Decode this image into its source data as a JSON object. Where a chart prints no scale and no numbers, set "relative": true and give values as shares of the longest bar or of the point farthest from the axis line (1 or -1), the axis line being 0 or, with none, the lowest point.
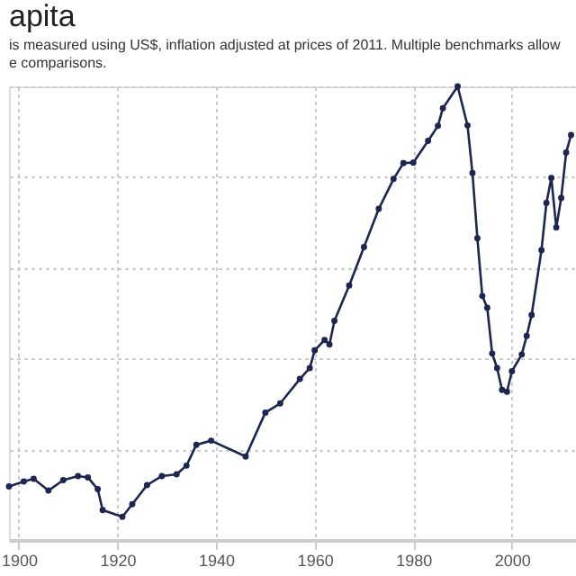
{
  "chart_data": {
    "type": "line",
    "title": "apita",
    "subtitle": [
      "is measured using US$, inflation adjusted at prices of 2011. Multiple benchmarks allow",
      "e comparisons."
    ],
    "relative": true,
    "marker": "circle",
    "line_style": "solid",
    "grid": true,
    "tick_labels": "x",
    "xlim": [
      1898,
      2013
    ],
    "xticks": [
      1900,
      1920,
      1940,
      1960,
      1980,
      2000
    ],
    "x": [
      1898,
      1901,
      1903,
      1906,
      1909,
      1912,
      1914,
      1916,
      1917,
      1921,
      1923,
      1926,
      1929,
      1932,
      1934,
      1936,
      1939,
      1946,
      1950,
      1953,
      1957,
      1959,
      1960,
      1962,
      1963,
      1964,
      1967,
      1970,
      1973,
      1976,
      1978,
      1980,
      1983,
      1985,
      1986,
      1989,
      1991,
      1992,
      1993,
      1994,
      1995,
      1996,
      1997,
      1998,
      1999,
      2000,
      2002,
      2003,
      2004,
      2006,
      2007,
      2008,
      2009,
      2010,
      2011,
      2012
    ],
    "series": [
      {
        "color": "#1d2551",
        "values": [
          0.118,
          0.129,
          0.135,
          0.109,
          0.132,
          0.141,
          0.138,
          0.112,
          0.066,
          0.051,
          0.079,
          0.121,
          0.141,
          0.145,
          0.164,
          0.21,
          0.219,
          0.184,
          0.281,
          0.301,
          0.355,
          0.379,
          0.418,
          0.441,
          0.431,
          0.483,
          0.561,
          0.646,
          0.73,
          0.796,
          0.831,
          0.832,
          0.88,
          0.913,
          0.952,
          1.0,
          0.914,
          0.809,
          0.665,
          0.538,
          0.512,
          0.411,
          0.379,
          0.331,
          0.327,
          0.372,
          0.409,
          0.45,
          0.496,
          0.639,
          0.743,
          0.798,
          0.689,
          0.754,
          0.854,
          0.893
        ]
      }
    ]
  }
}
